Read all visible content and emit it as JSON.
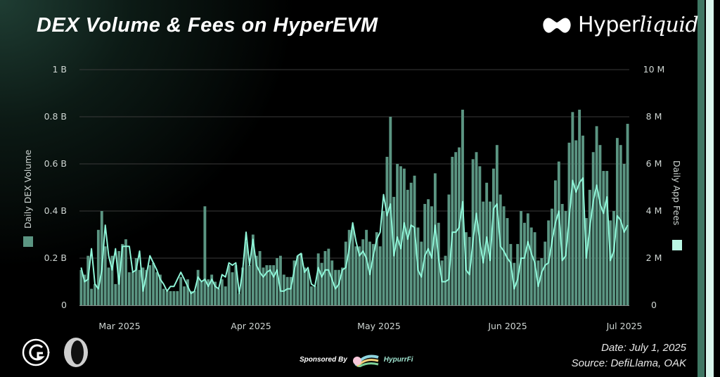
{
  "header": {
    "title": "DEX Volume & Fees on HyperEVM",
    "brand": "Hyper",
    "brand_italic": "liquid"
  },
  "footer": {
    "sponsored_by": "Sponsored By",
    "sponsor_name": "HypurrFi",
    "date": "Date: July 1, 2025",
    "source": "Source: DefiLlama, OAK"
  },
  "colors": {
    "bars": "#5b9582",
    "line": "#8ff5d8",
    "grid": "#3a3a3a"
  },
  "chart_data": {
    "type": "bar+line",
    "title": "DEX Volume & Fees on HyperEVM",
    "x_range": [
      "Feb 2025",
      "Jul 1 2025"
    ],
    "x_ticks": [
      "Mar 2025",
      "Apr 2025",
      "May 2025",
      "Jun 2025",
      "Jul 2025"
    ],
    "y_left": {
      "label": "Daily DEX Volume",
      "ticks": [
        "0",
        "0.2 B",
        "0.4 B",
        "0.6 B",
        "0.8 B",
        "1 B"
      ],
      "ylim": [
        0,
        1
      ],
      "unit": "B USD"
    },
    "y_right": {
      "label": "Daily App Fees",
      "ticks": [
        "0",
        "2 M",
        "4 M",
        "6 M",
        "8 M",
        "10 M"
      ],
      "ylim": [
        0,
        10
      ],
      "unit": "M USD"
    },
    "grid": true,
    "series": [
      {
        "name": "Daily DEX Volume",
        "type": "bar",
        "axis": "left",
        "values": [
          0.15,
          0.13,
          0.21,
          0.07,
          0.09,
          0.32,
          0.4,
          0.25,
          0.16,
          0.21,
          0.09,
          0.23,
          0.26,
          0.28,
          0.14,
          0.14,
          0.2,
          0.15,
          0.16,
          0.15,
          0.17,
          0.18,
          0.14,
          0.13,
          0.07,
          0.06,
          0.06,
          0.06,
          0.06,
          0.12,
          0.08,
          0.11,
          0.06,
          0.06,
          0.15,
          0.1,
          0.42,
          0.11,
          0.13,
          0.1,
          0.07,
          0.11,
          0.08,
          0.17,
          0.14,
          0.17,
          0.05,
          0.16,
          0.27,
          0.17,
          0.3,
          0.21,
          0.23,
          0.16,
          0.17,
          0.17,
          0.17,
          0.2,
          0.21,
          0.13,
          0.12,
          0.12,
          0.19,
          0.21,
          0.22,
          0.16,
          0.15,
          0.08,
          0.08,
          0.22,
          0.18,
          0.23,
          0.24,
          0.19,
          0.15,
          0.15,
          0.16,
          0.27,
          0.32,
          0.33,
          0.25,
          0.25,
          0.28,
          0.32,
          0.27,
          0.26,
          0.31,
          0.25,
          0.4,
          0.63,
          0.8,
          0.46,
          0.6,
          0.59,
          0.58,
          0.49,
          0.52,
          0.55,
          0.33,
          0.27,
          0.43,
          0.45,
          0.42,
          0.56,
          0.35,
          0.19,
          0.21,
          0.47,
          0.63,
          0.65,
          0.67,
          0.83,
          0.31,
          0.29,
          0.62,
          0.65,
          0.59,
          0.44,
          0.52,
          0.44,
          0.58,
          0.68,
          0.47,
          0.42,
          0.37,
          0.26,
          0.18,
          0.26,
          0.4,
          0.35,
          0.39,
          0.33,
          0.31,
          0.19,
          0.2,
          0.27,
          0.36,
          0.41,
          0.53,
          0.61,
          0.43,
          0.4,
          0.69,
          0.82,
          0.7,
          0.83,
          0.72,
          0.37,
          0.49,
          0.65,
          0.76,
          0.68,
          0.57,
          0.57,
          0.36,
          0.4,
          0.71,
          0.68,
          0.6,
          0.77
        ]
      },
      {
        "name": "Daily App Fees",
        "type": "line",
        "axis": "right",
        "values": [
          1.6,
          1.0,
          1.1,
          2.4,
          0.9,
          0.7,
          1.5,
          3.4,
          2.1,
          1.5,
          2.4,
          0.9,
          2.5,
          2.5,
          2.5,
          1.4,
          1.5,
          2.3,
          0.6,
          1.3,
          2.1,
          1.8,
          1.5,
          1.1,
          0.9,
          0.6,
          0.8,
          0.8,
          1.1,
          1.4,
          1.1,
          0.8,
          0.5,
          0.6,
          1.2,
          1.0,
          1.1,
          0.8,
          1.1,
          0.8,
          0.7,
          1.3,
          1.2,
          1.8,
          1.7,
          1.8,
          0.5,
          1.5,
          3.1,
          1.7,
          2.8,
          1.7,
          1.4,
          1.2,
          1.4,
          1.5,
          1.2,
          1.5,
          0.6,
          0.6,
          0.7,
          0.7,
          1.5,
          2.1,
          2.2,
          1.4,
          1.6,
          0.9,
          0.8,
          1.6,
          1.2,
          1.5,
          1.5,
          1.1,
          0.7,
          0.9,
          1.5,
          1.6,
          2.4,
          3.5,
          2.7,
          2.1,
          2.3,
          2.0,
          1.3,
          2.1,
          2.8,
          3.1,
          4.7,
          3.8,
          4.3,
          2.1,
          2.9,
          2.4,
          3.5,
          2.8,
          3.4,
          3.3,
          1.5,
          1.2,
          2.1,
          2.4,
          2.0,
          3.4,
          2.0,
          1.0,
          1.0,
          1.1,
          3.1,
          3.1,
          3.3,
          4.4,
          1.5,
          1.3,
          2.7,
          3.9,
          2.7,
          1.8,
          2.9,
          1.9,
          4.1,
          4.3,
          2.5,
          2.3,
          2.0,
          1.8,
          0.7,
          1.1,
          2.0,
          2.0,
          2.7,
          2.2,
          1.8,
          0.8,
          1.4,
          1.7,
          1.8,
          2.7,
          3.5,
          4.0,
          1.9,
          2.1,
          3.7,
          5.3,
          4.8,
          5.2,
          5.4,
          2.0,
          3.3,
          4.4,
          5.1,
          4.3,
          3.9,
          4.6,
          1.9,
          2.3,
          3.8,
          3.6,
          3.1,
          3.4
        ]
      }
    ]
  }
}
